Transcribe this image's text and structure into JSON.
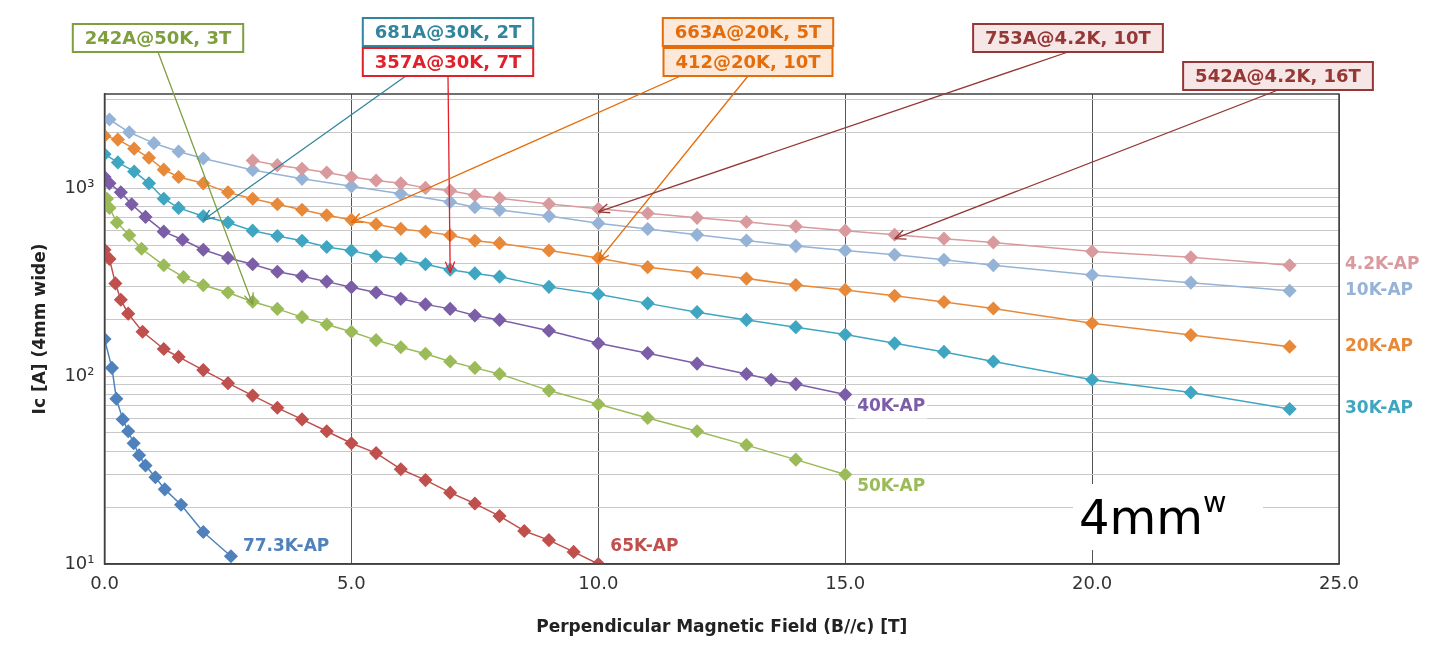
{
  "chart_data": {
    "type": "line",
    "xlabel": "Perpendicular Magnetic Field (B//c) [T]",
    "ylabel": "Ic [A] (4mm wide)",
    "log": "y",
    "grid": true,
    "legend": false,
    "marker": "diamond",
    "line_style": "solid",
    "xlim": [
      0,
      25
    ],
    "xticks": [
      {
        "value": 0,
        "label": "0.0"
      },
      {
        "value": 5,
        "label": "5.0"
      },
      {
        "value": 10,
        "label": "10.0"
      },
      {
        "value": 15,
        "label": "15.0"
      },
      {
        "value": 20,
        "label": "20.0"
      },
      {
        "value": 25,
        "label": "25.0"
      }
    ],
    "ylim": [
      10,
      3200
    ],
    "yticks": [
      {
        "value": 10,
        "label": "10¹"
      },
      {
        "value": 20,
        "label": null
      },
      {
        "value": 30,
        "label": null
      },
      {
        "value": 40,
        "label": null
      },
      {
        "value": 50,
        "label": null
      },
      {
        "value": 60,
        "label": null
      },
      {
        "value": 70,
        "label": null
      },
      {
        "value": 80,
        "label": null
      },
      {
        "value": 90,
        "label": null
      },
      {
        "value": 100,
        "label": "10²"
      },
      {
        "value": 200,
        "label": null
      },
      {
        "value": 300,
        "label": null
      },
      {
        "value": 400,
        "label": null
      },
      {
        "value": 500,
        "label": null
      },
      {
        "value": 600,
        "label": null
      },
      {
        "value": 700,
        "label": null
      },
      {
        "value": 800,
        "label": null
      },
      {
        "value": 900,
        "label": null
      },
      {
        "value": 1000,
        "label": "10³"
      },
      {
        "value": 2000,
        "label": null
      },
      {
        "value": 3000,
        "label": null
      }
    ],
    "series": [
      {
        "name": "4.2K-AP",
        "color": "#d99a9e",
        "x": [
          3,
          3.5,
          4,
          4.5,
          5,
          5.5,
          6,
          6.5,
          7,
          7.5,
          8,
          9,
          10,
          11,
          12,
          13,
          14,
          15,
          16,
          17,
          18,
          20,
          22,
          24
        ],
        "values": [
          1413,
          1336,
          1278,
          1222,
          1156,
          1106,
          1069,
          1011,
          977,
          923,
          890,
          830,
          783,
          740,
          700,
          665,
          630,
          598,
          569,
          542,
          517,
          463,
          431,
          391
        ]
      },
      {
        "name": "10K-AP",
        "color": "#95b3d7",
        "x": [
          0.1,
          0.5,
          1,
          1.5,
          2,
          3,
          4,
          5,
          6,
          7,
          7.5,
          8,
          9,
          10,
          11,
          12,
          13,
          14,
          15,
          16,
          17,
          18,
          20,
          22,
          24
        ],
        "values": [
          2340,
          2000,
          1750,
          1580,
          1450,
          1260,
          1130,
          1030,
          940,
          850,
          798,
          770,
          715,
          655,
          610,
          568,
          530,
          495,
          469,
          445,
          418,
          391,
          347,
          316,
          286
        ]
      },
      {
        "name": "20K-AP",
        "color": "#e8893a",
        "x": [
          0,
          0.27,
          0.6,
          0.9,
          1.2,
          1.5,
          2,
          2.5,
          3,
          3.5,
          4,
          4.5,
          5,
          5.5,
          6,
          6.5,
          7,
          7.5,
          8,
          9,
          10,
          11,
          12,
          13,
          14,
          15,
          16,
          17,
          18,
          20,
          22,
          24
        ],
        "values": [
          1914,
          1828,
          1636,
          1463,
          1264,
          1156,
          1069,
          957,
          885,
          827,
          773,
          722,
          683,
          647,
          611,
          591,
          565,
          528,
          513,
          469,
          428,
          382,
          357,
          332,
          307,
          289,
          269,
          249,
          230,
          192,
          166,
          144
        ]
      },
      {
        "name": "30K-AP",
        "color": "#3fa6c2",
        "x": [
          0,
          0.27,
          0.6,
          0.9,
          1.2,
          1.5,
          2,
          2.5,
          3,
          3.5,
          4,
          4.5,
          5,
          5.5,
          6,
          6.5,
          7,
          7.5,
          8,
          9,
          10,
          11,
          12,
          13,
          14,
          15,
          16,
          17,
          18,
          20,
          22,
          24
        ],
        "values": [
          1528,
          1382,
          1237,
          1069,
          885,
          791,
          714,
          661,
          598,
          560,
          528,
          489,
          468,
          437,
          423,
          396,
          370,
          354,
          340,
          300,
          274,
          245,
          220,
          200,
          183,
          167,
          150,
          135,
          120,
          96,
          82,
          67
        ]
      },
      {
        "name": "40K-AP",
        "color": "#7b5ea7",
        "x": [
          0,
          0.1,
          0.33,
          0.55,
          0.83,
          1.2,
          1.58,
          2,
          2.5,
          3,
          3.5,
          4,
          4.5,
          5,
          5.5,
          6,
          6.5,
          7,
          7.5,
          8,
          9,
          10,
          11,
          12,
          13,
          13.5,
          14,
          15
        ],
        "values": [
          1156,
          1069,
          957,
          827,
          708,
          591,
          535,
          473,
          428,
          396,
          361,
          342,
          320,
          299,
          280,
          259,
          242,
          229,
          211,
          200,
          175,
          150,
          133,
          117,
          103,
          96,
          91,
          80
        ]
      },
      {
        "name": "50K-AP",
        "color": "#9bbb59",
        "x": [
          0.05,
          0.1,
          0.25,
          0.5,
          0.75,
          1.2,
          1.6,
          2,
          2.5,
          3,
          3.5,
          4,
          4.5,
          5,
          5.5,
          6,
          6.5,
          7,
          7.5,
          8,
          9,
          10,
          11,
          12,
          13,
          14,
          15
        ],
        "values": [
          885,
          791,
          661,
          565,
          479,
          391,
          338,
          306,
          280,
          250,
          229,
          207,
          189,
          173,
          156,
          143,
          132,
          120,
          111,
          103,
          84,
          71,
          60,
          51,
          43,
          36,
          30
        ]
      },
      {
        "name": "65K-AP",
        "color": "#c0504d",
        "x": [
          0,
          0.1,
          0.22,
          0.33,
          0.48,
          0.77,
          1.2,
          1.5,
          2,
          2.5,
          3,
          3.5,
          4,
          4.5,
          5,
          5.5,
          6,
          6.5,
          7,
          7.5,
          8,
          8.5,
          9,
          9.5,
          10
        ],
        "values": [
          473,
          423,
          313,
          256,
          216,
          173,
          140,
          127,
          108,
          92,
          79,
          68,
          59,
          51,
          44,
          39,
          32,
          28,
          24,
          21,
          18,
          15,
          13.4,
          11.6,
          10
        ]
      },
      {
        "name": "77.3K-AP",
        "color": "#4f81bd",
        "x": [
          0,
          0.15,
          0.24,
          0.37,
          0.48,
          0.59,
          0.7,
          0.83,
          1.03,
          1.22,
          1.55,
          2,
          2.56
        ],
        "values": [
          158,
          111,
          76,
          59,
          51,
          44,
          38,
          33.5,
          29,
          25,
          20.7,
          14.8,
          11
        ]
      }
    ],
    "annotations": [
      {
        "text": "242A@50K, 3T",
        "x": 3,
        "y": 242
      },
      {
        "text": "681A@30K, 2T",
        "x": 2,
        "y": 681
      },
      {
        "text": "357A@30K, 7T",
        "x": 7,
        "y": 357
      },
      {
        "text": "663A@20K, 5T",
        "x": 5,
        "y": 663
      },
      {
        "text": "412@20K, 10T",
        "x": 10,
        "y": 412
      },
      {
        "text": "753A@4.2K, 10T",
        "x": 10,
        "y": 753
      },
      {
        "text": "542A@4.2K, 16T",
        "x": 16,
        "y": 542
      },
      "4mm$^{w}$"
    ]
  }
}
